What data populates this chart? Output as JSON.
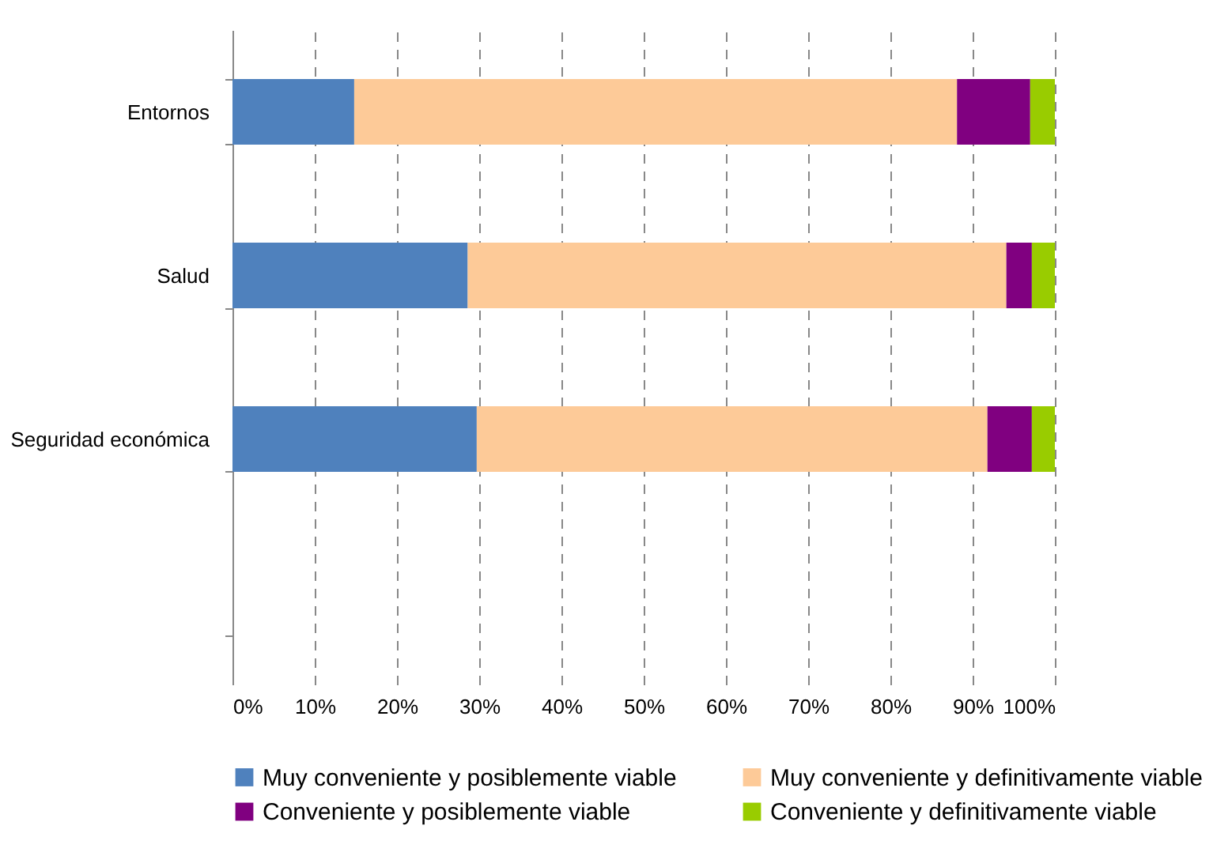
{
  "chart_data": {
    "type": "bar",
    "orientation": "horizontal",
    "stacked": true,
    "categories": [
      "Entornos",
      "Salud",
      "Seguridad económica",
      null
    ],
    "series": [
      {
        "name": "Muy conveniente y posiblemente viable",
        "color": "#4f81bd",
        "values": [
          14.8,
          28.6,
          29.7,
          null
        ]
      },
      {
        "name": "Muy conveniente y definitivamente viable",
        "color": "#fdca98",
        "values": [
          73.3,
          65.5,
          62.1,
          null
        ]
      },
      {
        "name": "Conveniente y posiblemente viable",
        "color": "#800080",
        "values": [
          8.9,
          3.1,
          5.4,
          null
        ]
      },
      {
        "name": "Conveniente y definitivamente viable",
        "color": "#99cc00",
        "values": [
          3.0,
          2.8,
          2.8,
          null
        ]
      }
    ],
    "xlim": [
      0,
      100
    ],
    "xticks": [
      {
        "value": 0,
        "label": "0%"
      },
      {
        "value": 10,
        "label": "10%"
      },
      {
        "value": 20,
        "label": "20%"
      },
      {
        "value": 30,
        "label": "30%"
      },
      {
        "value": 40,
        "label": "40%"
      },
      {
        "value": 50,
        "label": "50%"
      },
      {
        "value": 60,
        "label": "60%"
      },
      {
        "value": 70,
        "label": "70%"
      },
      {
        "value": 80,
        "label": "80%"
      },
      {
        "value": 90,
        "label": "90%"
      },
      {
        "value": 100,
        "label": "100%"
      }
    ],
    "grid": "x",
    "legend": "bottom"
  }
}
